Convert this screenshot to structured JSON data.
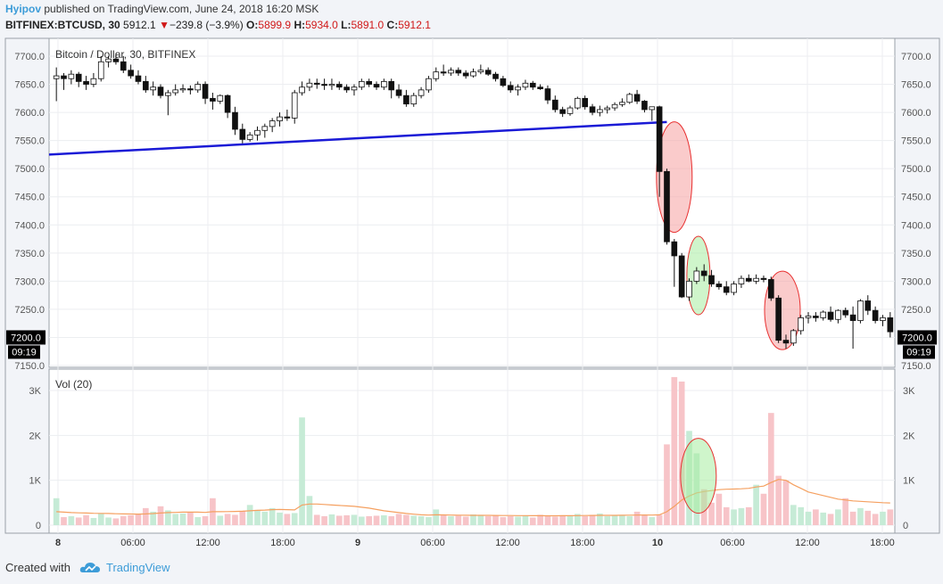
{
  "header": {
    "user": "Hyipov",
    "published_text": "published on TradingView.com, June 24, 2018 16:20 MSK",
    "symbol": "BITFINEX:BTCUSD, 30",
    "last": "5912.1",
    "change_arrow": "▼",
    "change": "−239.8 (−3.9%)",
    "o_label": "O:",
    "o_value": "5899.9",
    "h_label": "H:",
    "h_value": "5934.0",
    "l_label": "L:",
    "l_value": "5891.0",
    "c_label": "C:",
    "c_value": "5912.1"
  },
  "footer": {
    "created_with": "Created with",
    "brand": "TradingView",
    "brand_icon": "tradingview-cloud-icon"
  },
  "colors": {
    "up_body": "#ffffff",
    "down_body": "#111111",
    "trendline": "#1a1ad6",
    "vol_up": "#c6ebd6",
    "vol_down": "#f7c4c8",
    "vol_ma": "#f5a060",
    "ellipse_red_fill": "#f5a0a0",
    "ellipse_red_stroke": "#e83030",
    "ellipse_green_fill": "#a8eca0",
    "ellipse_green_stroke": "#e83030",
    "accent": "#3d9cd8"
  },
  "chart_data": [
    {
      "type": "candlestick",
      "title": "Bitcoin / Dollar, 30, BITFINEX",
      "ylim": [
        7150,
        7720
      ],
      "y_ticks": [
        "7700.0",
        "7650.0",
        "7600.0",
        "7550.0",
        "7500.0",
        "7450.0",
        "7400.0",
        "7350.0",
        "7300.0",
        "7250.0",
        "7200.0",
        "7150.0"
      ],
      "x_ticks": [
        "8",
        "06:00",
        "12:00",
        "18:00",
        "9",
        "06:00",
        "12:00",
        "18:00",
        "10",
        "06:00",
        "12:00",
        "18:00"
      ],
      "price_label": "7200.0",
      "time_label": "09:19",
      "candles": [
        [
          7660,
          7680,
          7620,
          7665
        ],
        [
          7665,
          7670,
          7640,
          7660
        ],
        [
          7660,
          7675,
          7650,
          7668
        ],
        [
          7668,
          7672,
          7645,
          7655
        ],
        [
          7655,
          7665,
          7640,
          7650
        ],
        [
          7650,
          7670,
          7645,
          7660
        ],
        [
          7660,
          7700,
          7655,
          7690
        ],
        [
          7690,
          7700,
          7680,
          7695
        ],
        [
          7695,
          7705,
          7685,
          7690
        ],
        [
          7690,
          7700,
          7670,
          7675
        ],
        [
          7675,
          7685,
          7660,
          7665
        ],
        [
          7665,
          7675,
          7650,
          7655
        ],
        [
          7655,
          7665,
          7635,
          7640
        ],
        [
          7640,
          7655,
          7630,
          7645
        ],
        [
          7645,
          7650,
          7625,
          7630
        ],
        [
          7630,
          7640,
          7595,
          7635
        ],
        [
          7635,
          7650,
          7630,
          7640
        ],
        [
          7640,
          7650,
          7635,
          7642
        ],
        [
          7642,
          7648,
          7632,
          7640
        ],
        [
          7640,
          7655,
          7635,
          7650
        ],
        [
          7650,
          7655,
          7615,
          7625
        ],
        [
          7625,
          7635,
          7605,
          7620
        ],
        [
          7620,
          7632,
          7615,
          7630
        ],
        [
          7630,
          7632,
          7590,
          7600
        ],
        [
          7600,
          7610,
          7560,
          7570
        ],
        [
          7570,
          7580,
          7545,
          7552
        ],
        [
          7552,
          7565,
          7548,
          7560
        ],
        [
          7560,
          7575,
          7550,
          7568
        ],
        [
          7568,
          7580,
          7555,
          7575
        ],
        [
          7575,
          7590,
          7565,
          7585
        ],
        [
          7585,
          7600,
          7575,
          7592
        ],
        [
          7592,
          7605,
          7585,
          7590
        ],
        [
          7590,
          7640,
          7580,
          7635
        ],
        [
          7635,
          7655,
          7630,
          7645
        ],
        [
          7645,
          7660,
          7638,
          7652
        ],
        [
          7652,
          7660,
          7642,
          7650
        ],
        [
          7650,
          7660,
          7640,
          7648
        ],
        [
          7648,
          7660,
          7640,
          7650
        ],
        [
          7650,
          7655,
          7640,
          7645
        ],
        [
          7645,
          7650,
          7635,
          7640
        ],
        [
          7640,
          7650,
          7630,
          7645
        ],
        [
          7645,
          7660,
          7640,
          7655
        ],
        [
          7655,
          7660,
          7645,
          7650
        ],
        [
          7650,
          7655,
          7640,
          7645
        ],
        [
          7645,
          7660,
          7640,
          7655
        ],
        [
          7655,
          7660,
          7625,
          7640
        ],
        [
          7640,
          7650,
          7625,
          7630
        ],
        [
          7630,
          7640,
          7610,
          7615
        ],
        [
          7615,
          7635,
          7610,
          7630
        ],
        [
          7630,
          7645,
          7625,
          7640
        ],
        [
          7640,
          7665,
          7635,
          7660
        ],
        [
          7660,
          7680,
          7655,
          7672
        ],
        [
          7672,
          7685,
          7665,
          7670
        ],
        [
          7670,
          7680,
          7665,
          7675
        ],
        [
          7675,
          7680,
          7665,
          7670
        ],
        [
          7670,
          7675,
          7660,
          7665
        ],
        [
          7665,
          7678,
          7662,
          7672
        ],
        [
          7672,
          7685,
          7668,
          7675
        ],
        [
          7675,
          7680,
          7665,
          7668
        ],
        [
          7668,
          7672,
          7655,
          7660
        ],
        [
          7660,
          7665,
          7645,
          7648
        ],
        [
          7648,
          7655,
          7635,
          7640
        ],
        [
          7640,
          7650,
          7630,
          7645
        ],
        [
          7645,
          7658,
          7640,
          7652
        ],
        [
          7652,
          7656,
          7640,
          7645
        ],
        [
          7645,
          7650,
          7640,
          7642
        ],
        [
          7642,
          7648,
          7615,
          7622
        ],
        [
          7622,
          7630,
          7600,
          7605
        ],
        [
          7605,
          7610,
          7592,
          7598
        ],
        [
          7598,
          7612,
          7594,
          7608
        ],
        [
          7608,
          7628,
          7605,
          7625
        ],
        [
          7625,
          7630,
          7605,
          7610
        ],
        [
          7610,
          7615,
          7595,
          7600
        ],
        [
          7600,
          7612,
          7593,
          7605
        ],
        [
          7605,
          7612,
          7598,
          7608
        ],
        [
          7608,
          7618,
          7603,
          7614
        ],
        [
          7614,
          7625,
          7610,
          7618
        ],
        [
          7618,
          7635,
          7615,
          7632
        ],
        [
          7632,
          7640,
          7615,
          7620
        ],
        [
          7620,
          7622,
          7600,
          7605
        ],
        [
          7605,
          7610,
          7585,
          7610
        ],
        [
          7610,
          7612,
          7450,
          7495
        ],
        [
          7495,
          7500,
          7365,
          7370
        ],
        [
          7370,
          7375,
          7290,
          7345
        ],
        [
          7345,
          7350,
          7270,
          7272
        ],
        [
          7272,
          7305,
          7265,
          7300
        ],
        [
          7300,
          7325,
          7295,
          7318
        ],
        [
          7318,
          7330,
          7300,
          7310
        ],
        [
          7310,
          7320,
          7290,
          7295
        ],
        [
          7295,
          7300,
          7285,
          7290
        ],
        [
          7290,
          7300,
          7275,
          7280
        ],
        [
          7280,
          7300,
          7275,
          7295
        ],
        [
          7295,
          7310,
          7288,
          7305
        ],
        [
          7305,
          7312,
          7298,
          7300
        ],
        [
          7300,
          7312,
          7295,
          7305
        ],
        [
          7305,
          7310,
          7298,
          7303
        ],
        [
          7303,
          7308,
          7265,
          7270
        ],
        [
          7270,
          7275,
          7190,
          7195
        ],
        [
          7195,
          7205,
          7180,
          7190
        ],
        [
          7190,
          7215,
          7185,
          7212
        ],
        [
          7212,
          7240,
          7205,
          7235
        ],
        [
          7235,
          7245,
          7225,
          7238
        ],
        [
          7238,
          7245,
          7228,
          7235
        ],
        [
          7235,
          7248,
          7230,
          7245
        ],
        [
          7245,
          7255,
          7228,
          7232
        ],
        [
          7232,
          7250,
          7225,
          7248
        ],
        [
          7248,
          7253,
          7235,
          7240
        ],
        [
          7240,
          7255,
          7180,
          7230
        ],
        [
          7230,
          7268,
          7225,
          7265
        ],
        [
          7265,
          7275,
          7240,
          7248
        ],
        [
          7248,
          7255,
          7225,
          7230
        ],
        [
          7230,
          7240,
          7220,
          7235
        ],
        [
          7235,
          7245,
          7200,
          7210
        ]
      ],
      "trendline": {
        "from": [
          0,
          7525
        ],
        "to": [
          82,
          7583
        ]
      }
    },
    {
      "type": "bar",
      "title": "Vol (20)",
      "ylim": [
        0,
        3500
      ],
      "y_ticks": [
        "0",
        "1K",
        "2K",
        "3K"
      ],
      "volumes": [
        600,
        180,
        200,
        170,
        220,
        160,
        260,
        170,
        150,
        200,
        220,
        240,
        380,
        300,
        420,
        330,
        250,
        260,
        280,
        180,
        200,
        600,
        210,
        250,
        230,
        320,
        450,
        340,
        300,
        380,
        280,
        250,
        270,
        2400,
        650,
        230,
        200,
        240,
        210,
        220,
        230,
        190,
        200,
        210,
        220,
        200,
        250,
        230,
        210,
        200,
        180,
        350,
        220,
        200,
        210,
        190,
        240,
        230,
        200,
        210,
        180,
        200,
        190,
        210,
        170,
        230,
        200,
        190,
        220,
        210,
        250,
        200,
        230,
        260,
        200,
        210,
        220,
        200,
        300,
        230,
        180,
        230,
        1800,
        3300,
        3200,
        2100,
        1600,
        800,
        500,
        700,
        400,
        350,
        380,
        400,
        900,
        700,
        2500,
        1100,
        1000,
        450,
        400,
        300,
        350,
        280,
        250,
        350,
        600,
        300,
        380,
        320,
        250,
        300,
        350
      ],
      "volume_ma": [
        300,
        290,
        280,
        275,
        270,
        265,
        262,
        260,
        255,
        250,
        248,
        246,
        250,
        258,
        270,
        280,
        285,
        290,
        292,
        290,
        285,
        300,
        300,
        302,
        305,
        310,
        320,
        330,
        335,
        345,
        350,
        345,
        340,
        450,
        470,
        470,
        460,
        450,
        440,
        430,
        420,
        400,
        380,
        350,
        320,
        300,
        280,
        260,
        245,
        230,
        225,
        230,
        228,
        225,
        222,
        220,
        218,
        218,
        218,
        217,
        215,
        214,
        212,
        212,
        210,
        210,
        209,
        208,
        210,
        211,
        213,
        214,
        216,
        218,
        218,
        219,
        220,
        222,
        225,
        226,
        225,
        230,
        300,
        420,
        560,
        650,
        720,
        750,
        770,
        790,
        800,
        805,
        810,
        820,
        850,
        870,
        950,
        1020,
        1000,
        900,
        820,
        740,
        700,
        660,
        620,
        580,
        560,
        540,
        530,
        520,
        510,
        500,
        495
      ]
    }
  ]
}
